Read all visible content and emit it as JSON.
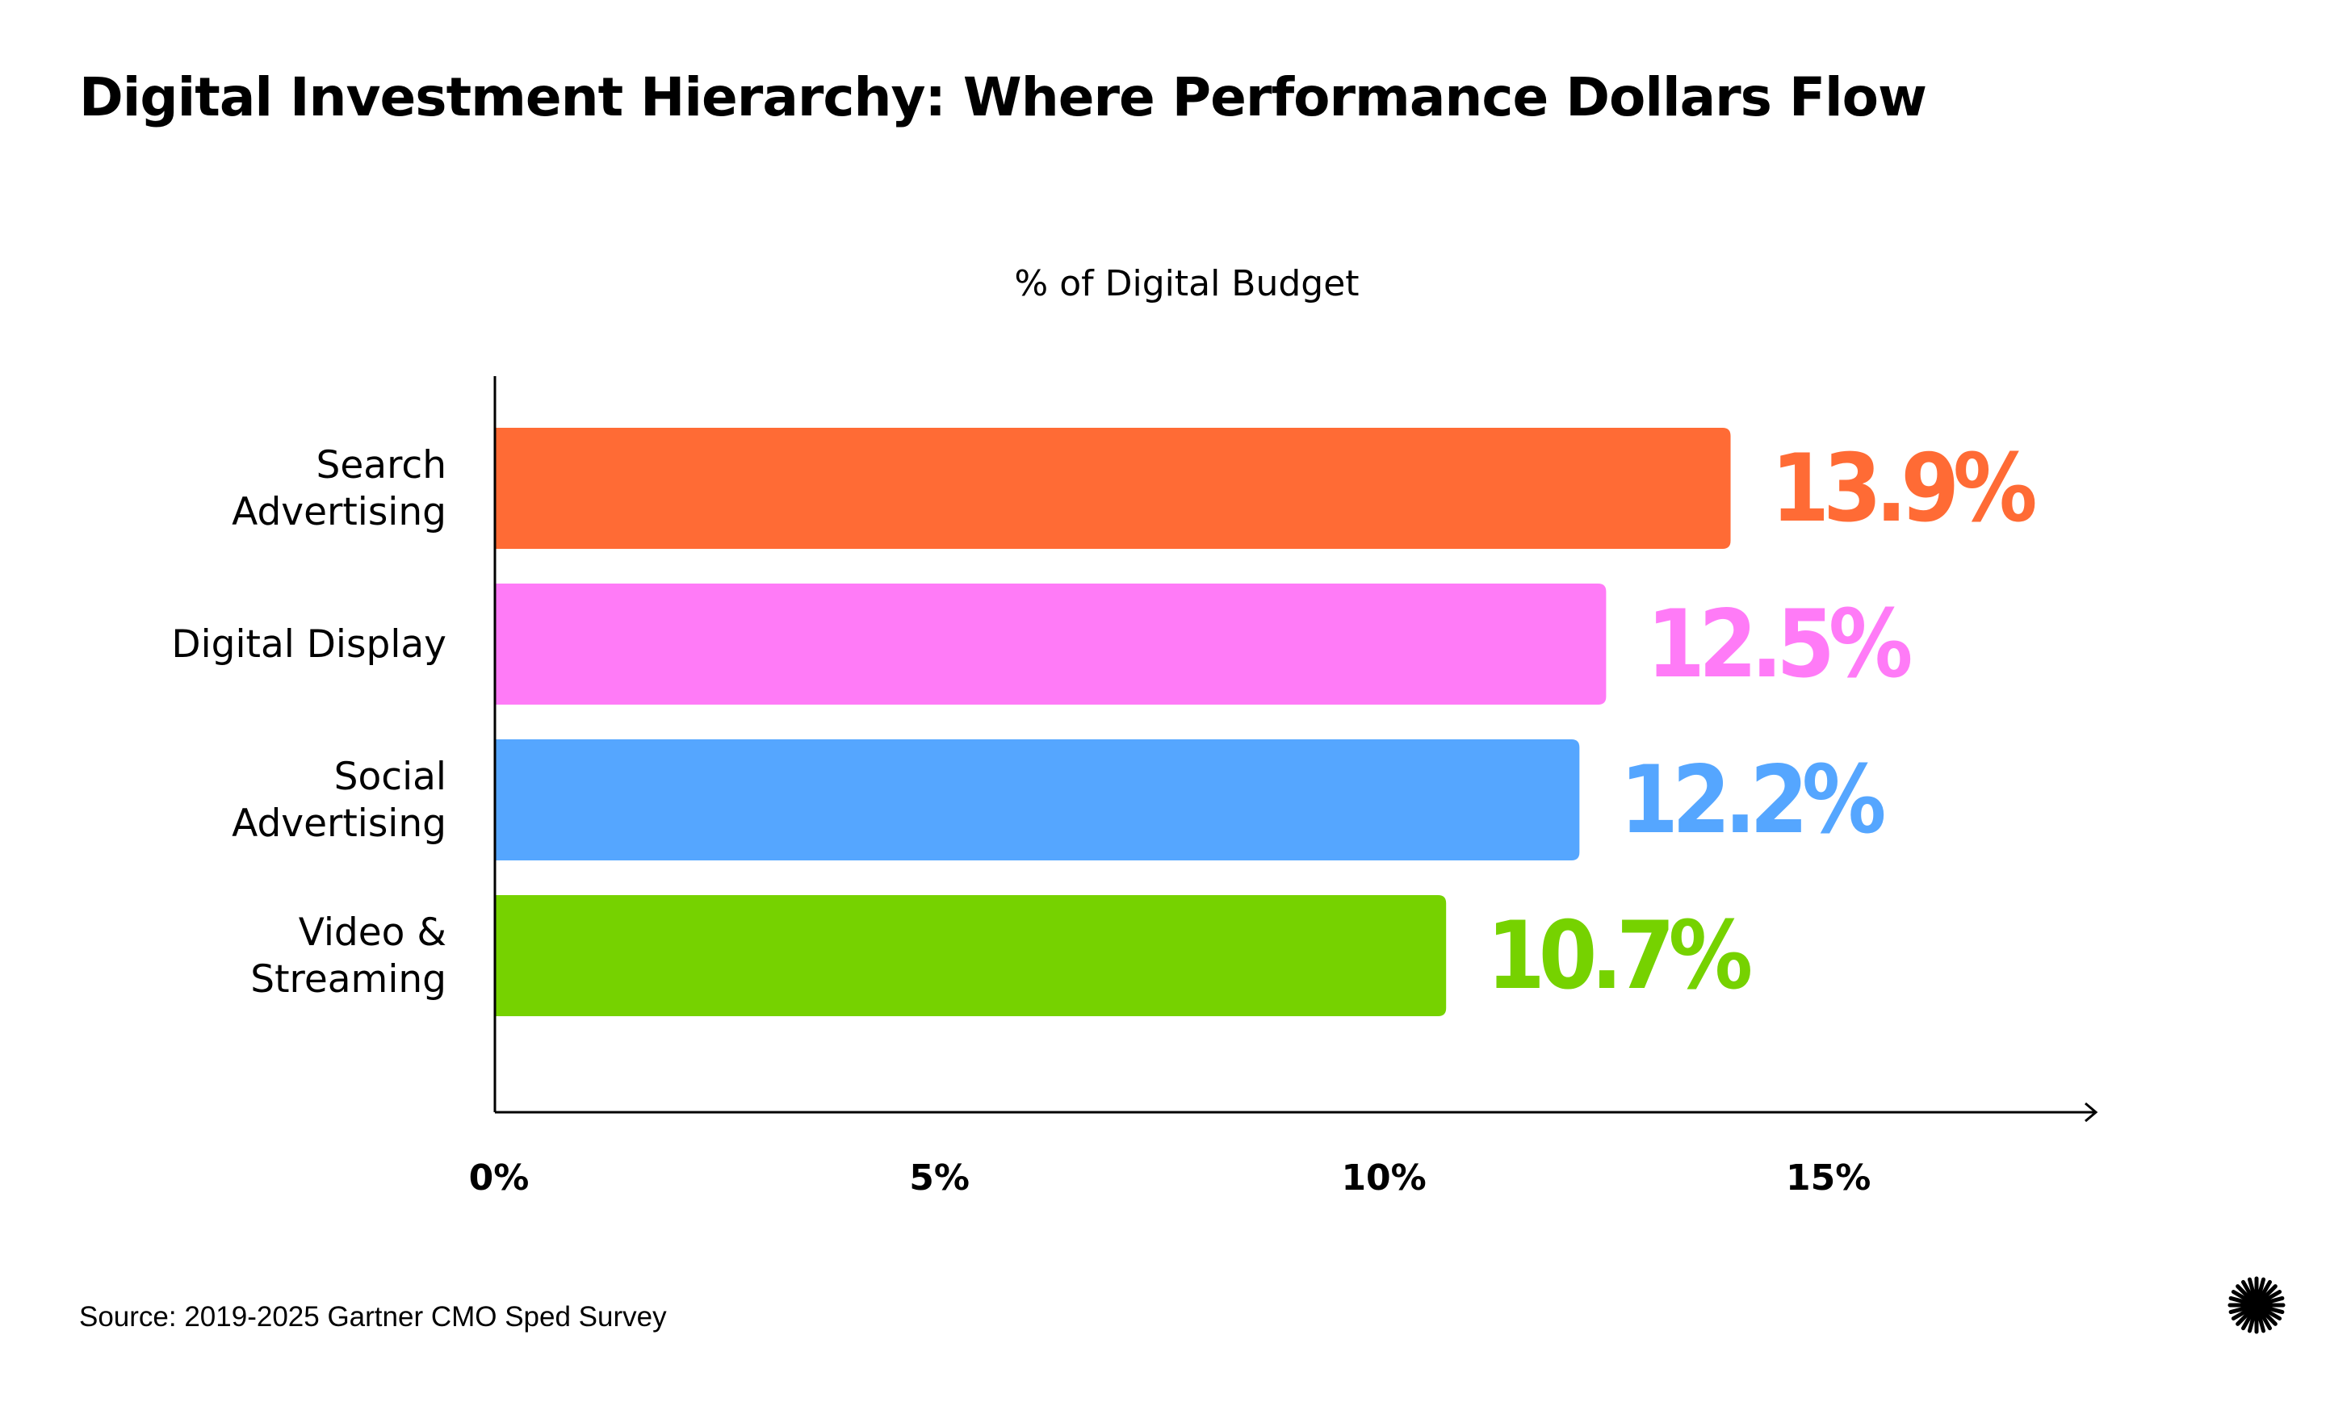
{
  "title": "Digital Investment Hierarchy: Where Performance Dollars Flow",
  "source": "Source: 2019-2025 Gartner CMO Sped Survey",
  "logo_icon": "starburst-icon",
  "chart_data": {
    "type": "bar",
    "orientation": "horizontal",
    "title": "",
    "ylabel": "% of Digital Budget",
    "xlabel": "",
    "categories": [
      [
        "Search",
        "Advertising"
      ],
      [
        "Digital Display"
      ],
      [
        "Social",
        "Advertising"
      ],
      [
        "Video &",
        "Streaming"
      ]
    ],
    "values": [
      13.9,
      12.5,
      12.2,
      10.7
    ],
    "value_labels": [
      "13.9%",
      "12.5%",
      "12.2%",
      "10.7%"
    ],
    "colors": [
      "#FF6B35",
      "#FF7BF7",
      "#55A6FF",
      "#76D200"
    ],
    "xlim": [
      0,
      18
    ],
    "xticks": [
      0,
      5,
      10,
      15
    ],
    "xtick_labels": [
      "0%",
      "5%",
      "10%",
      "15%"
    ],
    "grid": false,
    "legend": "none"
  }
}
